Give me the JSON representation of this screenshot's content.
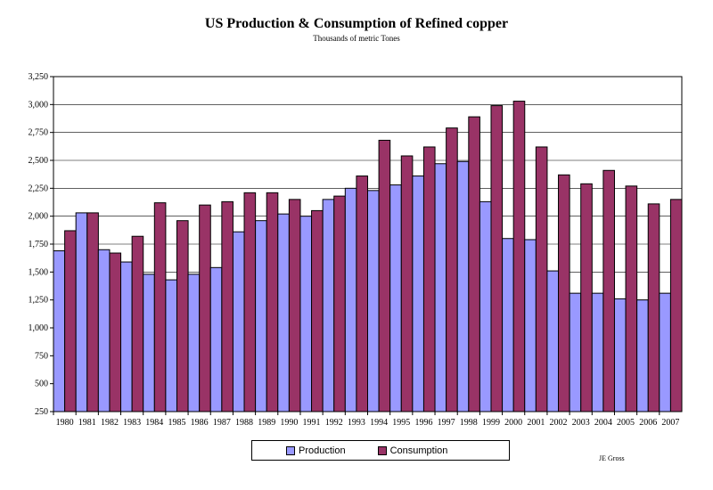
{
  "chart_data": {
    "type": "bar",
    "title": "US Production & Consumption of Refined copper",
    "subtitle": "Thousands of metric Tones",
    "xlabel": "",
    "ylabel": "",
    "ylim": [
      250,
      3250
    ],
    "yticks": [
      250,
      500,
      750,
      1000,
      1250,
      1500,
      1750,
      2000,
      2250,
      2500,
      2750,
      3000,
      3250
    ],
    "ytick_labels": [
      "250",
      "500",
      "750",
      "1,000",
      "1,250",
      "1,500",
      "1,750",
      "2,000",
      "2,250",
      "2,500",
      "2,750",
      "3,000",
      "3,250"
    ],
    "grid": true,
    "legend_position": "bottom",
    "categories": [
      "1980",
      "1981",
      "1982",
      "1983",
      "1984",
      "1985",
      "1986",
      "1987",
      "1988",
      "1989",
      "1990",
      "1991",
      "1992",
      "1993",
      "1994",
      "1995",
      "1996",
      "1997",
      "1998",
      "1999",
      "2000",
      "2001",
      "2002",
      "2003",
      "2004",
      "2005",
      "2006",
      "2007"
    ],
    "series": [
      {
        "name": "Production",
        "color": "#9999ff",
        "values": [
          1690,
          2030,
          1700,
          1590,
          1480,
          1430,
          1480,
          1540,
          1860,
          1960,
          2020,
          2000,
          2150,
          2250,
          2230,
          2280,
          2360,
          2470,
          2490,
          2130,
          1800,
          1790,
          1510,
          1310,
          1310,
          1260,
          1250,
          1310
        ]
      },
      {
        "name": "Consumption",
        "color": "#993366",
        "values": [
          1870,
          2030,
          1670,
          1820,
          2120,
          1960,
          2100,
          2130,
          2210,
          2210,
          2150,
          2050,
          2180,
          2360,
          2680,
          2540,
          2620,
          2790,
          2890,
          2990,
          3030,
          2620,
          2370,
          2290,
          2410,
          2270,
          2110,
          2150
        ]
      }
    ]
  },
  "credit": "JE Gross"
}
